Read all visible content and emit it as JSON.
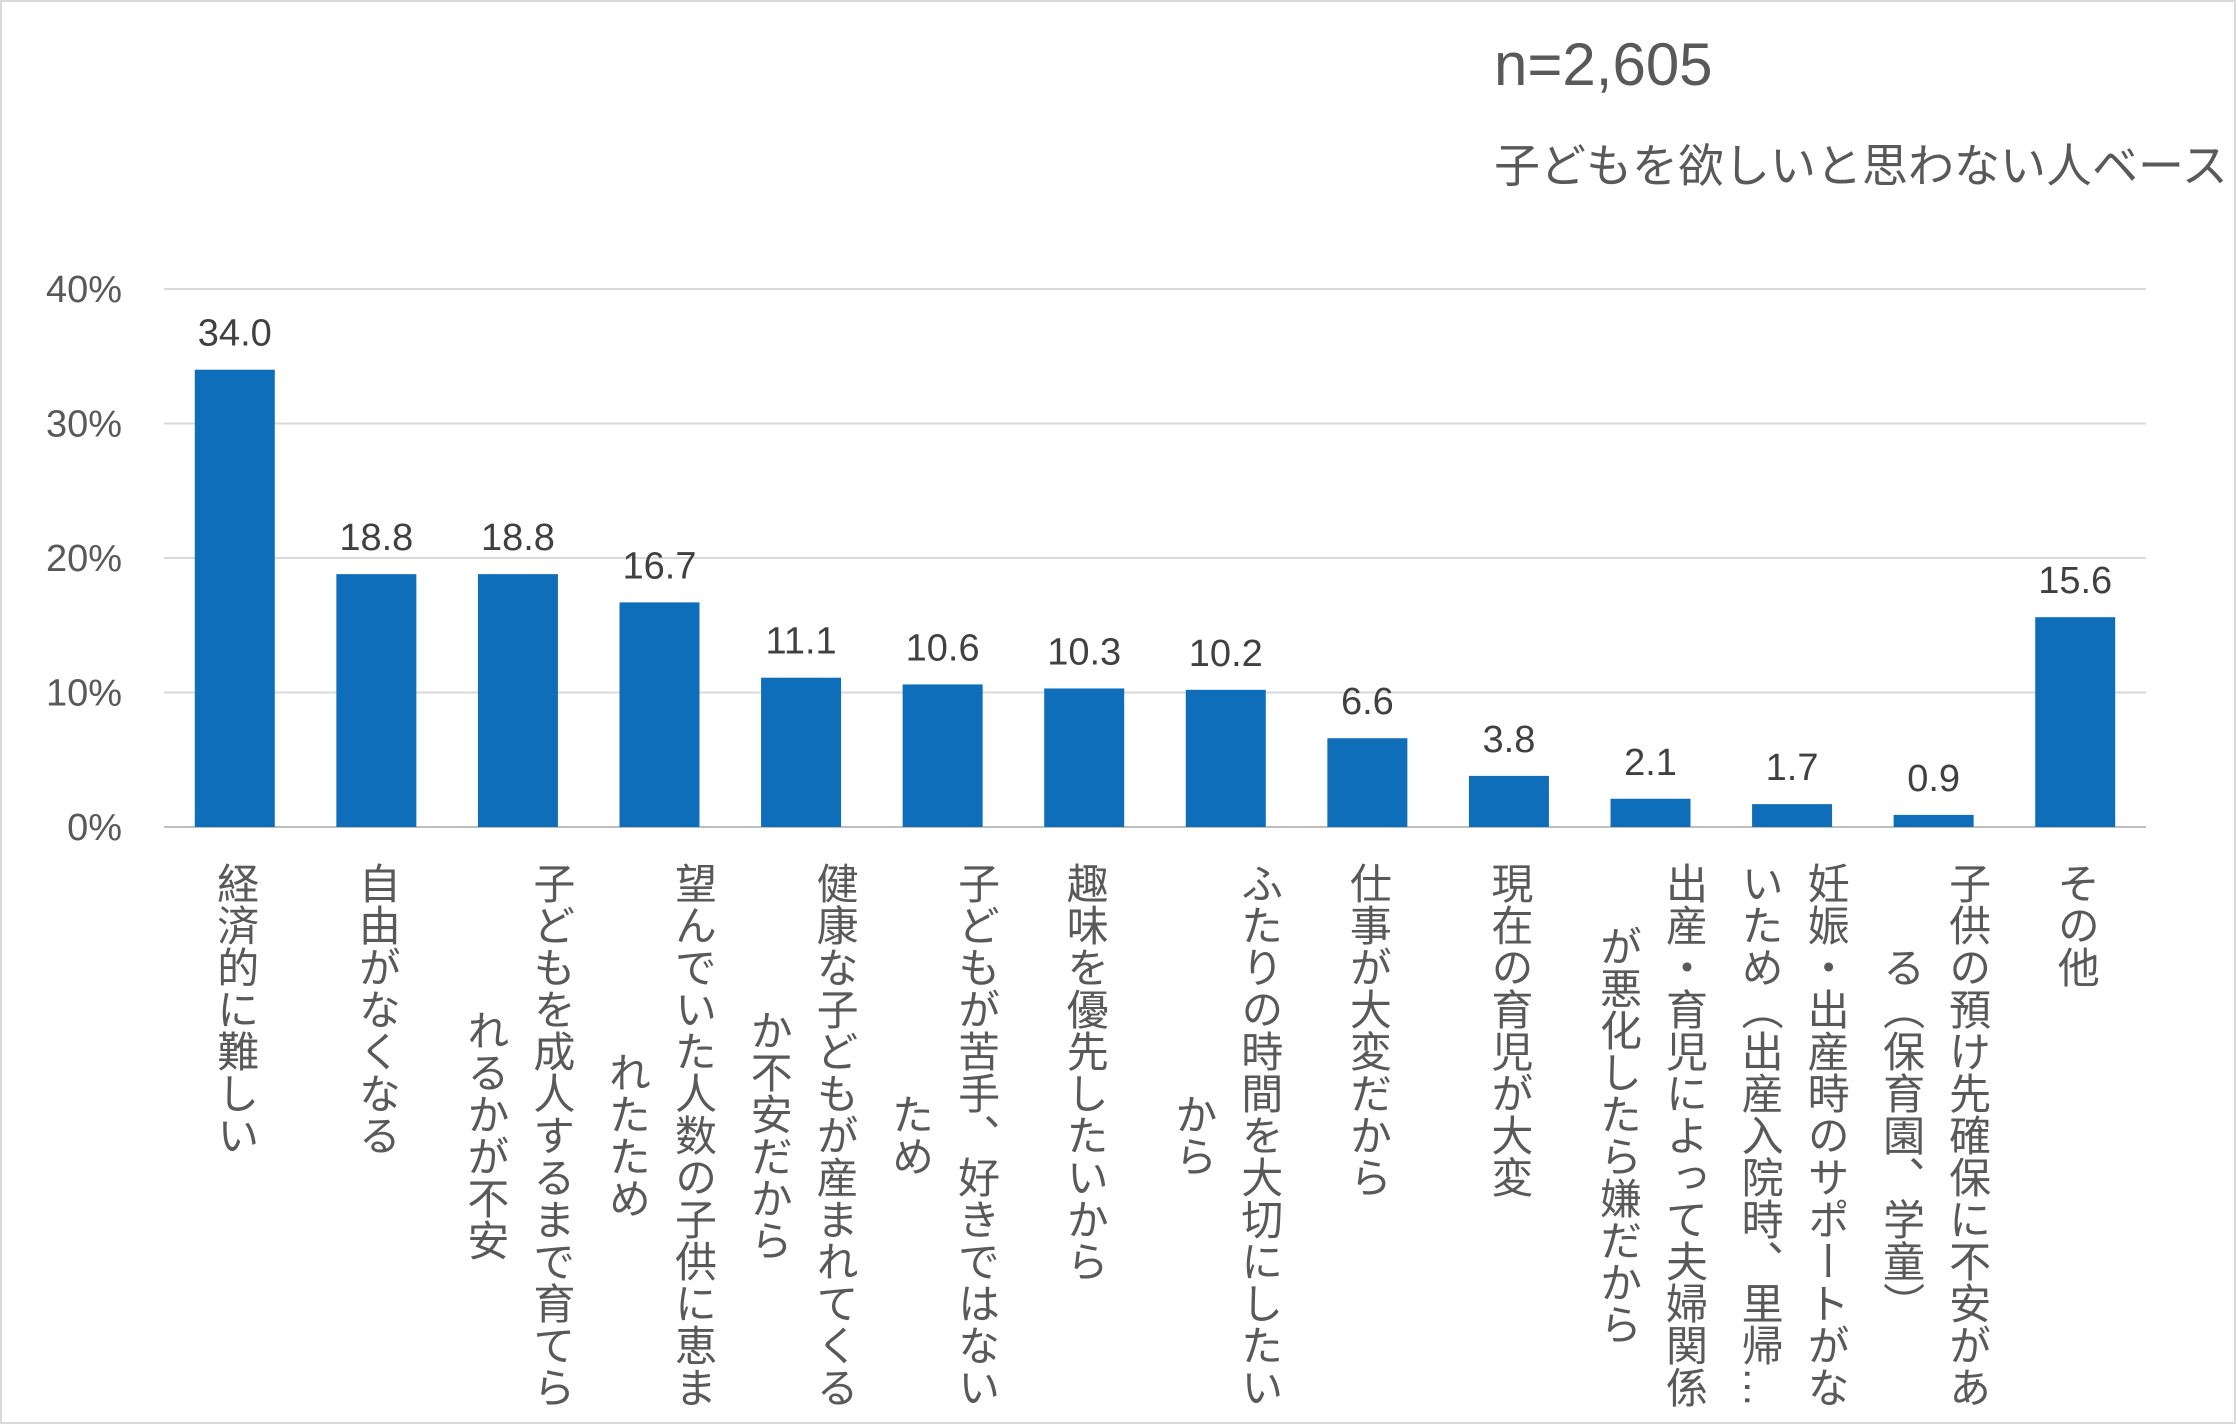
{
  "sample_size": "n=2,605",
  "base": "子どもを欲しいと思わない人ベース",
  "chart_data": {
    "type": "bar",
    "title": "",
    "xlabel": "",
    "ylabel": "",
    "ylim": [
      0,
      40
    ],
    "yticks": [
      0,
      10,
      20,
      30,
      40
    ],
    "ytick_labels": [
      "0%",
      "10%",
      "20%",
      "30%",
      "40%"
    ],
    "grid": true,
    "bar_color": "#0F6EBA",
    "categories": [
      [
        "経済的に難しい"
      ],
      [
        "自由がなくなる"
      ],
      [
        "子どもを成人するまで育てら",
        "れるかが不安"
      ],
      [
        "望んでいた人数の子供に恵ま",
        "れたため"
      ],
      [
        "健康な子どもが産まれてくる",
        "か不安だから"
      ],
      [
        "子どもが苦手、好きではない",
        "ため"
      ],
      [
        "趣味を優先したいから"
      ],
      [
        "ふたりの時間を大切にしたい",
        "から"
      ],
      [
        "仕事が大変だから"
      ],
      [
        "現在の育児が大変"
      ],
      [
        "出産・育児によって夫婦関係",
        "が悪化したら嫌だから"
      ],
      [
        "妊娠・出産時のサポートがな",
        "いため（出産入院時、里帰…"
      ],
      [
        "子供の預け先確保に不安があ",
        "る（保育園、学童）"
      ],
      [
        "その他"
      ]
    ],
    "values": [
      34.0,
      18.8,
      18.8,
      16.7,
      11.1,
      10.6,
      10.3,
      10.2,
      6.6,
      3.8,
      2.1,
      1.7,
      0.9,
      15.6
    ],
    "value_labels": [
      "34.0",
      "18.8",
      "18.8",
      "16.7",
      "11.1",
      "10.6",
      "10.3",
      "10.2",
      "6.6",
      "3.8",
      "2.1",
      "1.7",
      "0.9",
      "15.6"
    ]
  }
}
